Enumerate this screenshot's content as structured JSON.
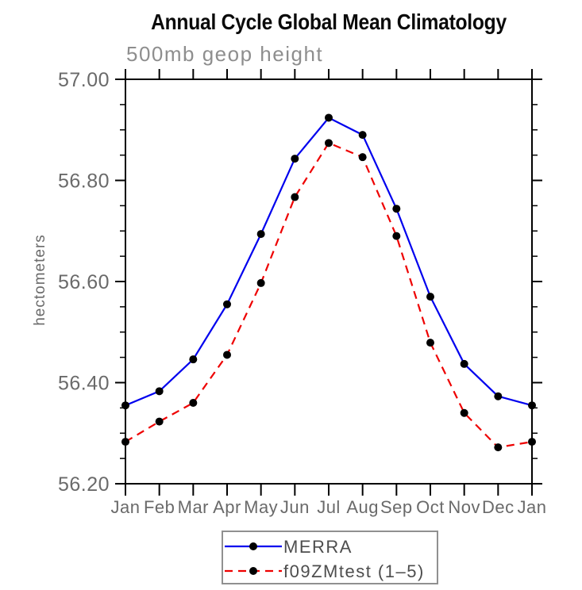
{
  "chart": {
    "title": "Annual Cycle Global Mean Climatology",
    "subtitle": "500mb geop height",
    "ylabel": "hectometers"
  },
  "chart_data": {
    "type": "line",
    "title": "Annual Cycle Global Mean Climatology",
    "subtitle": "500mb geop height",
    "xlabel": "",
    "ylabel": "hectometers",
    "categories": [
      "Jan",
      "Feb",
      "Mar",
      "Apr",
      "May",
      "Jun",
      "Jul",
      "Aug",
      "Sep",
      "Oct",
      "Nov",
      "Dec",
      "Jan"
    ],
    "ylim": [
      56.2,
      57.0
    ],
    "ytick_step": 0.2,
    "yminor_step": 0.05,
    "ytick_labels": [
      "56.20",
      "56.40",
      "56.60",
      "56.80",
      "57.00"
    ],
    "grid": false,
    "legend_position": "bottom-center",
    "series": [
      {
        "name": "MERRA",
        "color": "#0000ee",
        "style": "solid",
        "marker": "circle",
        "marker_color": "#000000",
        "values": [
          56.355,
          56.383,
          56.446,
          56.555,
          56.694,
          56.843,
          56.924,
          56.89,
          56.744,
          56.57,
          56.437,
          56.373,
          56.355
        ]
      },
      {
        "name": "f09ZMtest (1–5)",
        "color": "#ee0000",
        "style": "dashed",
        "marker": "circle",
        "marker_color": "#000000",
        "values": [
          56.283,
          56.323,
          56.36,
          56.455,
          56.597,
          56.767,
          56.874,
          56.846,
          56.69,
          56.479,
          56.34,
          56.272,
          56.283
        ]
      }
    ],
    "colors": {
      "axis": "#000000",
      "tick_label": "#6a6a6a",
      "axis_label": "#6a6a6a",
      "subtitle": "#8e8e8e",
      "title": "#0a0a0a",
      "legend_border": "#909090",
      "legend_text": "#4d4d4d"
    }
  }
}
